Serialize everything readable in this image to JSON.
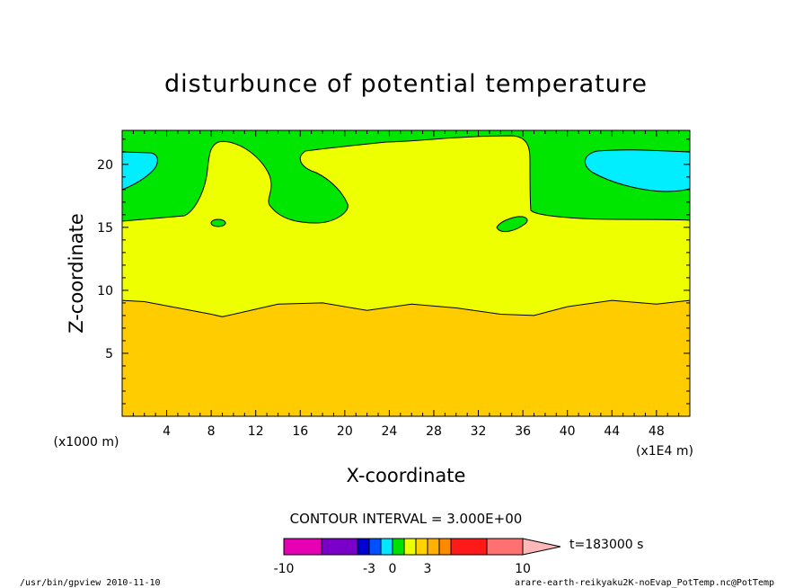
{
  "chart_data": {
    "type": "contour",
    "title": "disturbunce of potential temperature",
    "xlabel": "X-coordinate",
    "ylabel": "Z-coordinate",
    "x_unit_left": "(x1000 m)",
    "x_unit_right": "(x1E4 m)",
    "xlim": [
      0,
      51
    ],
    "ylim": [
      0,
      22.7
    ],
    "xticks": [
      4,
      8,
      12,
      16,
      20,
      24,
      28,
      32,
      36,
      40,
      44,
      48
    ],
    "yticks": [
      5,
      10,
      15,
      20
    ],
    "contour_interval_text": "CONTOUR INTERVAL = 3.000E+00",
    "time_label": "t=183000 s",
    "levels": [
      -10,
      -3,
      0,
      3,
      10
    ],
    "colorbar_colors": [
      "#e600b3",
      "#7a00c9",
      "#0000d4",
      "#0050ff",
      "#00e6ff",
      "#00e000",
      "#ecff00",
      "#ffd200",
      "#ffb000",
      "#ff8a00",
      "#ff1a1a",
      "#ff7070",
      "#ffb8b8"
    ],
    "region_colors": {
      "lower_band": "#ffcc00",
      "middle_band": "#eeff00",
      "upper_band": "#00e600",
      "top_pockets": "#00eeff"
    },
    "lower_boundary": {
      "x": [
        0,
        2,
        5,
        8,
        9,
        11,
        14,
        18,
        22,
        26,
        30,
        34,
        37,
        40,
        44,
        48,
        51
      ],
      "y": [
        9.2,
        9.1,
        8.6,
        8.1,
        7.9,
        8.3,
        8.9,
        9.0,
        8.4,
        8.9,
        8.6,
        8.1,
        8.0,
        8.7,
        9.2,
        8.9,
        9.2
      ]
    },
    "footer_left": "/usr/bin/gpview  2010-11-10",
    "footer_right": "arare-earth-reikyaku2K-noEvap_PotTemp.nc@PotTemp"
  }
}
